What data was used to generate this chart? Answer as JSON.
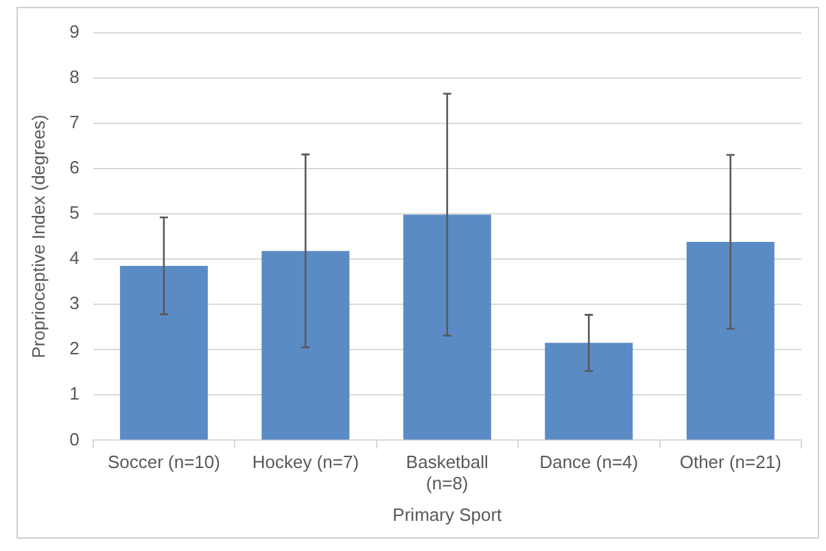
{
  "chart_data": {
    "type": "bar",
    "xlabel": "Primary Sport",
    "ylabel": "Proprioceptive Index (degrees)",
    "categories": [
      "Soccer (n=10)",
      "Hockey (n=7)",
      "Basketball (n=8)",
      "Dance (n=4)",
      "Other (n=21)"
    ],
    "values": [
      3.85,
      4.18,
      4.98,
      2.15,
      4.38
    ],
    "errors": [
      1.07,
      2.13,
      2.67,
      0.62,
      1.92
    ],
    "color": "#5b8bc5",
    "ylim": [
      0,
      9
    ],
    "yticks": [
      0,
      1,
      2,
      3,
      4,
      5,
      6,
      7,
      8,
      9
    ],
    "grid": "y",
    "legend": false
  }
}
